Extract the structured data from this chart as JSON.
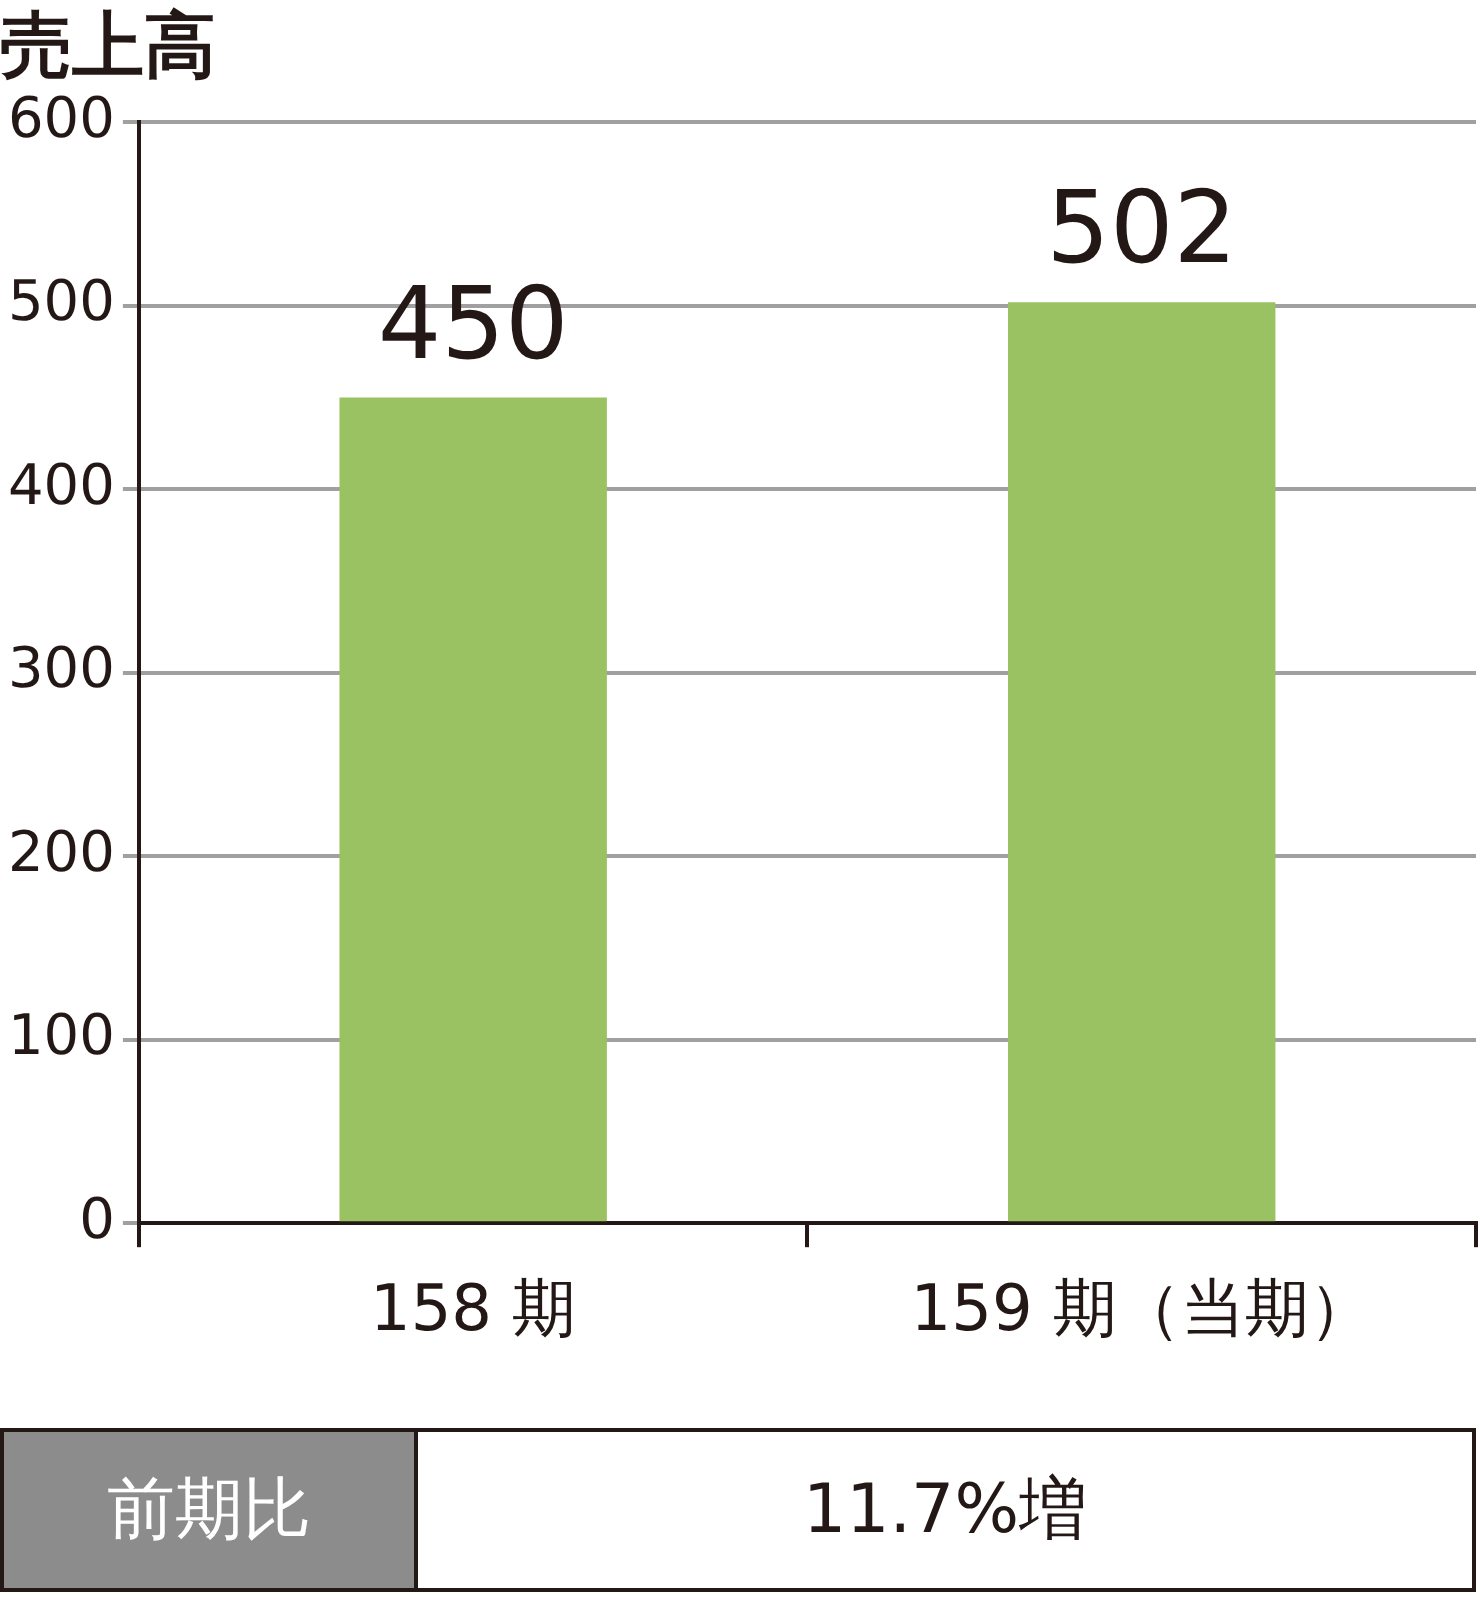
{
  "chart_data": {
    "type": "bar",
    "title": "売上高",
    "categories": [
      "158 期",
      "159 期（当期）"
    ],
    "series": [
      {
        "color": "#9ac263",
        "values": [
          450,
          502
        ]
      }
    ],
    "ylim": [
      0,
      600
    ],
    "yticks": [
      0,
      100,
      200,
      300,
      400,
      500,
      600
    ],
    "grid": "y",
    "legend": false,
    "data_labels": true,
    "annotations": [
      "前期比",
      "11.7%増"
    ]
  }
}
